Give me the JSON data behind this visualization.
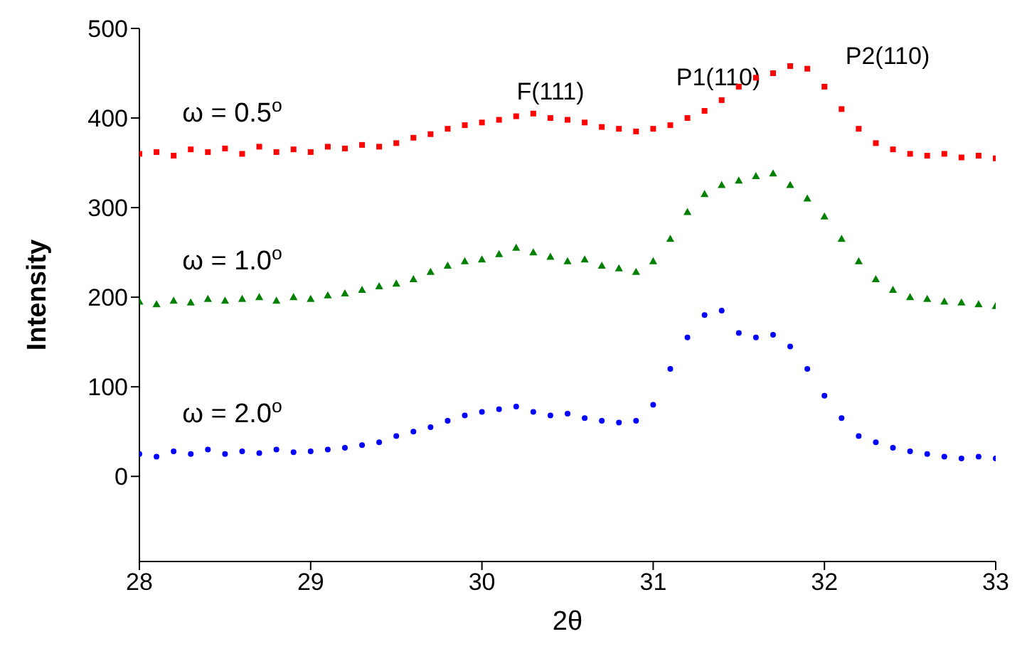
{
  "chart_data": {
    "type": "scatter",
    "xlabel": "2θ",
    "ylabel": "Intensity",
    "xlim": [
      28,
      33
    ],
    "xticks": [
      28,
      29,
      30,
      31,
      32,
      33
    ],
    "ylim": [
      -95,
      500
    ],
    "yticks": [
      0,
      100,
      200,
      300,
      400,
      500
    ],
    "grid": false,
    "legend": false,
    "x": [
      28.0,
      28.1,
      28.2,
      28.3,
      28.4,
      28.5,
      28.6,
      28.7,
      28.8,
      28.9,
      29.0,
      29.1,
      29.2,
      29.3,
      29.4,
      29.5,
      29.6,
      29.7,
      29.8,
      29.9,
      30.0,
      30.1,
      30.2,
      30.3,
      30.4,
      30.5,
      30.6,
      30.7,
      30.8,
      30.9,
      31.0,
      31.1,
      31.2,
      31.3,
      31.4,
      31.5,
      31.6,
      31.7,
      31.8,
      31.9,
      32.0,
      32.1,
      32.2,
      32.3,
      32.4,
      32.5,
      32.6,
      32.7,
      32.8,
      32.9,
      33.0
    ],
    "series": [
      {
        "name": "ω = 0.5$^{o}$",
        "color": "#ff0000",
        "marker": "square",
        "values": [
          360,
          362,
          358,
          365,
          362,
          366,
          360,
          368,
          362,
          365,
          362,
          368,
          366,
          370,
          368,
          372,
          378,
          382,
          388,
          392,
          395,
          398,
          402,
          405,
          400,
          398,
          395,
          390,
          388,
          385,
          388,
          392,
          400,
          408,
          420,
          435,
          445,
          450,
          458,
          455,
          435,
          410,
          388,
          372,
          365,
          360,
          358,
          360,
          356,
          358,
          355
        ]
      },
      {
        "name": "ω = 1.0$^{o}$",
        "color": "#008000",
        "marker": "triangle",
        "values": [
          195,
          192,
          196,
          194,
          198,
          196,
          198,
          200,
          196,
          200,
          198,
          202,
          204,
          208,
          212,
          215,
          220,
          228,
          235,
          240,
          242,
          248,
          255,
          250,
          245,
          240,
          242,
          235,
          232,
          228,
          240,
          265,
          295,
          315,
          325,
          330,
          335,
          338,
          325,
          310,
          290,
          265,
          240,
          220,
          208,
          200,
          198,
          195,
          194,
          192,
          190
        ]
      },
      {
        "name": "ω = 2.0$^{o}$",
        "color": "#0000ff",
        "marker": "circle",
        "values": [
          25,
          22,
          28,
          25,
          30,
          25,
          28,
          26,
          30,
          27,
          28,
          30,
          32,
          35,
          38,
          45,
          50,
          55,
          62,
          68,
          72,
          75,
          78,
          72,
          68,
          70,
          65,
          62,
          60,
          62,
          80,
          120,
          155,
          180,
          185,
          160,
          155,
          158,
          145,
          120,
          90,
          65,
          45,
          38,
          32,
          28,
          25,
          22,
          20,
          22,
          20
        ]
      }
    ],
    "annotations": [
      "F(111)",
      "P1(110)",
      "P2(110)"
    ]
  }
}
